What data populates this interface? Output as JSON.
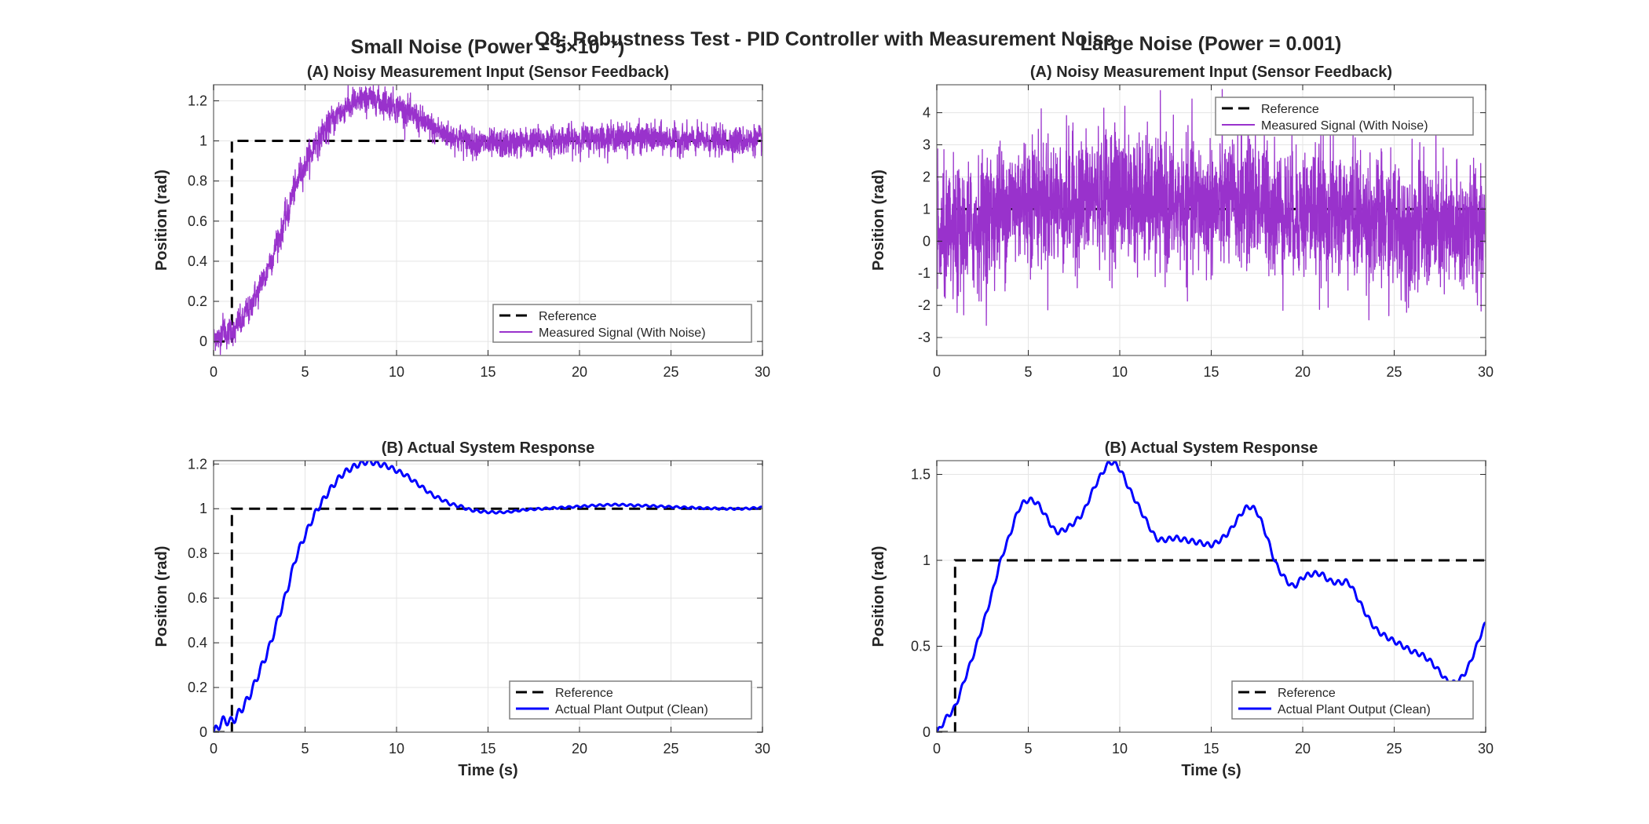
{
  "figure": {
    "suptitle": "Q8: Robustness Test - PID Controller with Measurement Noise",
    "column_titles": [
      "Small  Noise (Power = 5×10⁻⁷)",
      "Large Noise (Power = 0.001)"
    ]
  },
  "colors": {
    "reference": "#000000",
    "measured": "#9932CC",
    "clean": "#0000FF",
    "grid": "#e5e5e5",
    "axis": "#262626"
  },
  "chart_data": [
    {
      "type": "line",
      "title": "(A) Noisy Measurement Input (Sensor Feedback)",
      "xlabel": "",
      "ylabel": "Position (rad)",
      "xlim": [
        0,
        30
      ],
      "ylim": [
        -0.07,
        1.28
      ],
      "xticks": [
        0,
        5,
        10,
        15,
        20,
        25,
        30
      ],
      "yticks": [
        0,
        0.2,
        0.4,
        0.6,
        0.8,
        1,
        1.2
      ],
      "grid": true,
      "legend": "bottom-right",
      "series": [
        {
          "name": "Reference",
          "style": "dashed",
          "color": "#000000",
          "step_time": 1,
          "before": 0,
          "after": 1
        },
        {
          "name": "Measured Signal (With Noise)",
          "style": "solid",
          "color": "#9932CC",
          "base": "small_clean",
          "noise_std": 0.035
        }
      ]
    },
    {
      "type": "line",
      "title": "(A) Noisy Measurement Input (Sensor Feedback)",
      "xlabel": "",
      "ylabel": "Position (rad)",
      "xlim": [
        0,
        30
      ],
      "ylim": [
        -3.56,
        4.87
      ],
      "xticks": [
        0,
        5,
        10,
        15,
        20,
        25,
        30
      ],
      "yticks": [
        -3,
        -2,
        -1,
        0,
        1,
        2,
        3,
        4
      ],
      "grid": true,
      "legend": "top-right",
      "series": [
        {
          "name": "Reference",
          "style": "dashed",
          "color": "#000000",
          "step_time": 1,
          "before": 0,
          "after": 1
        },
        {
          "name": "Measured Signal (With Noise)",
          "style": "solid",
          "color": "#9932CC",
          "base": "large_clean",
          "noise_std": 1.0
        }
      ]
    },
    {
      "type": "line",
      "title": "(B) Actual System Response",
      "xlabel": "Time (s)",
      "ylabel": "Position (rad)",
      "xlim": [
        0,
        30
      ],
      "ylim": [
        0,
        1.215
      ],
      "xticks": [
        0,
        5,
        10,
        15,
        20,
        25,
        30
      ],
      "yticks": [
        0,
        0.2,
        0.4,
        0.6,
        0.8,
        1,
        1.2
      ],
      "grid": true,
      "legend": "bottom-right",
      "series": [
        {
          "name": "Reference",
          "style": "dashed",
          "color": "#000000",
          "step_time": 1,
          "before": 0,
          "after": 1
        },
        {
          "name": "Actual Plant Output (Clean)",
          "style": "solid",
          "color": "#0000FF",
          "base": "small_clean"
        }
      ]
    },
    {
      "type": "line",
      "title": "(B) Actual System Response",
      "xlabel": "Time (s)",
      "ylabel": "Position (rad)",
      "xlim": [
        0,
        30
      ],
      "ylim": [
        0,
        1.58
      ],
      "xticks": [
        0,
        5,
        10,
        15,
        20,
        25,
        30
      ],
      "yticks": [
        0,
        0.5,
        1,
        1.5
      ],
      "grid": true,
      "legend": "bottom-right",
      "series": [
        {
          "name": "Reference",
          "style": "dashed",
          "color": "#000000",
          "step_time": 1,
          "before": 0,
          "after": 1
        },
        {
          "name": "Actual Plant Output (Clean)",
          "style": "solid",
          "color": "#0000FF",
          "base": "large_clean"
        }
      ]
    }
  ],
  "responses": {
    "small_clean": {
      "t": [
        0,
        0.5,
        1,
        1.5,
        2,
        2.5,
        3,
        3.5,
        4,
        4.5,
        5,
        5.5,
        6,
        6.5,
        7,
        7.5,
        8,
        8.5,
        9,
        9.5,
        10,
        10.5,
        11,
        11.5,
        12,
        12.5,
        13,
        13.5,
        14,
        15,
        16,
        17,
        18,
        19,
        20,
        21,
        22,
        23,
        24,
        25,
        26,
        27,
        28,
        29,
        30
      ],
      "y": [
        0,
        0.05,
        0.05,
        0.1,
        0.17,
        0.27,
        0.37,
        0.5,
        0.63,
        0.78,
        0.88,
        0.97,
        1.04,
        1.1,
        1.15,
        1.18,
        1.2,
        1.21,
        1.2,
        1.19,
        1.17,
        1.15,
        1.12,
        1.09,
        1.06,
        1.04,
        1.02,
        1.01,
        0.995,
        0.985,
        0.985,
        0.995,
        1.0,
        1.005,
        1.01,
        1.015,
        1.018,
        1.015,
        1.012,
        1.008,
        1.005,
        1.002,
        1.0,
        1.0,
        1.005
      ]
    },
    "large_clean": {
      "t": [
        0,
        0.5,
        1,
        1.5,
        2,
        2.5,
        3,
        3.5,
        4,
        4.5,
        5,
        5.5,
        6,
        6.5,
        7,
        7.5,
        8,
        8.5,
        9,
        9.5,
        10,
        10.5,
        11,
        11.5,
        12,
        12.5,
        13,
        13.5,
        14,
        14.5,
        15,
        15.5,
        16,
        16.5,
        17,
        17.5,
        18,
        18.5,
        19,
        19.5,
        20,
        20.5,
        21,
        21.5,
        22,
        22.5,
        23,
        23.5,
        24,
        24.5,
        25,
        25.5,
        26,
        26.5,
        27,
        27.5,
        28,
        28.5,
        29,
        29.5,
        30
      ],
      "y": [
        0,
        0.08,
        0.15,
        0.3,
        0.45,
        0.62,
        0.8,
        1.0,
        1.15,
        1.3,
        1.35,
        1.33,
        1.25,
        1.17,
        1.18,
        1.22,
        1.28,
        1.4,
        1.5,
        1.57,
        1.53,
        1.42,
        1.32,
        1.22,
        1.13,
        1.12,
        1.13,
        1.12,
        1.11,
        1.1,
        1.09,
        1.12,
        1.17,
        1.25,
        1.31,
        1.28,
        1.15,
        0.99,
        0.9,
        0.85,
        0.9,
        0.92,
        0.92,
        0.88,
        0.87,
        0.87,
        0.78,
        0.68,
        0.6,
        0.56,
        0.53,
        0.5,
        0.47,
        0.45,
        0.41,
        0.35,
        0.29,
        0.3,
        0.37,
        0.5,
        0.63
      ]
    }
  }
}
